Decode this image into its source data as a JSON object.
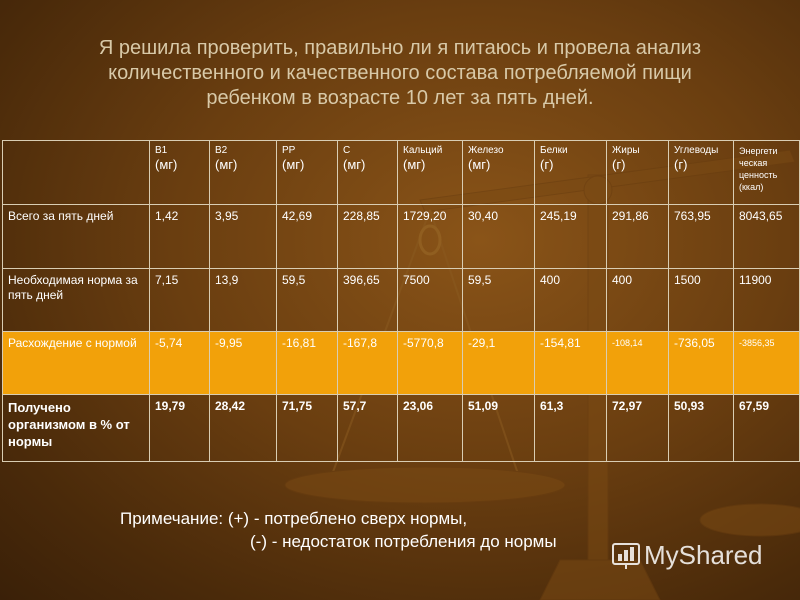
{
  "title": {
    "line1": "Я решила проверить, правильно ли я питаюсь и провела анализ",
    "line2": "количественного и качественного состава потребляемой пищи",
    "line3": "ребенком в возрасте 10 лет за пять дней."
  },
  "table": {
    "header": [
      {
        "name": "B1",
        "unit": "(мг)"
      },
      {
        "name": "B2",
        "unit": "(мг)"
      },
      {
        "name": "PP",
        "unit": "(мг)"
      },
      {
        "name": "C",
        "unit": "(мг)"
      },
      {
        "name": "Кальций",
        "unit": "(мг)"
      },
      {
        "name": "Железо",
        "unit": "(мг)"
      },
      {
        "name": "Белки",
        "unit": "(г)"
      },
      {
        "name": "Жиры",
        "unit": "(г)"
      },
      {
        "name": "Углеводы",
        "unit": "(г)"
      },
      {
        "name": "Энергети ческая ценность",
        "unit": "(ккал)"
      }
    ],
    "rows": [
      {
        "label": "Всего за пять дней",
        "values": [
          "1,42",
          "3,95",
          "42,69",
          "228,85",
          "1729,20",
          "30,40",
          "245,19",
          "291,86",
          "763,95",
          "8043,65"
        ]
      },
      {
        "label": "Необходимая норма за пять дней",
        "values": [
          "7,15",
          "13,9",
          "59,5",
          "396,65",
          "7500",
          "59,5",
          "400",
          "400",
          "1500",
          "11900"
        ]
      },
      {
        "label": "Расхождение с нормой",
        "values": [
          "-5,74",
          "-9,95",
          "-16,81",
          "-167,8",
          "-5770,8",
          "-29,1",
          "-154,81",
          "-108,14",
          "-736,05",
          "-3856,35"
        ]
      },
      {
        "label": "Получено организмом в % от нормы",
        "values": [
          "19,79",
          "28,42",
          "71,75",
          "57,7",
          "23,06",
          "51,09",
          "61,3",
          "72,97",
          "50,93",
          "67,59"
        ]
      }
    ]
  },
  "note": {
    "line1": "Примечание: (+) - потреблено сверх нормы,",
    "line2": "(-) - недостаток потребления до нормы"
  },
  "watermark": {
    "text": "MyShared",
    "icon": "myshared-logo-icon"
  },
  "colors": {
    "background": "#6a3e10",
    "highlight_row": "#f2a10a",
    "title_text": "#d8c9a8"
  }
}
